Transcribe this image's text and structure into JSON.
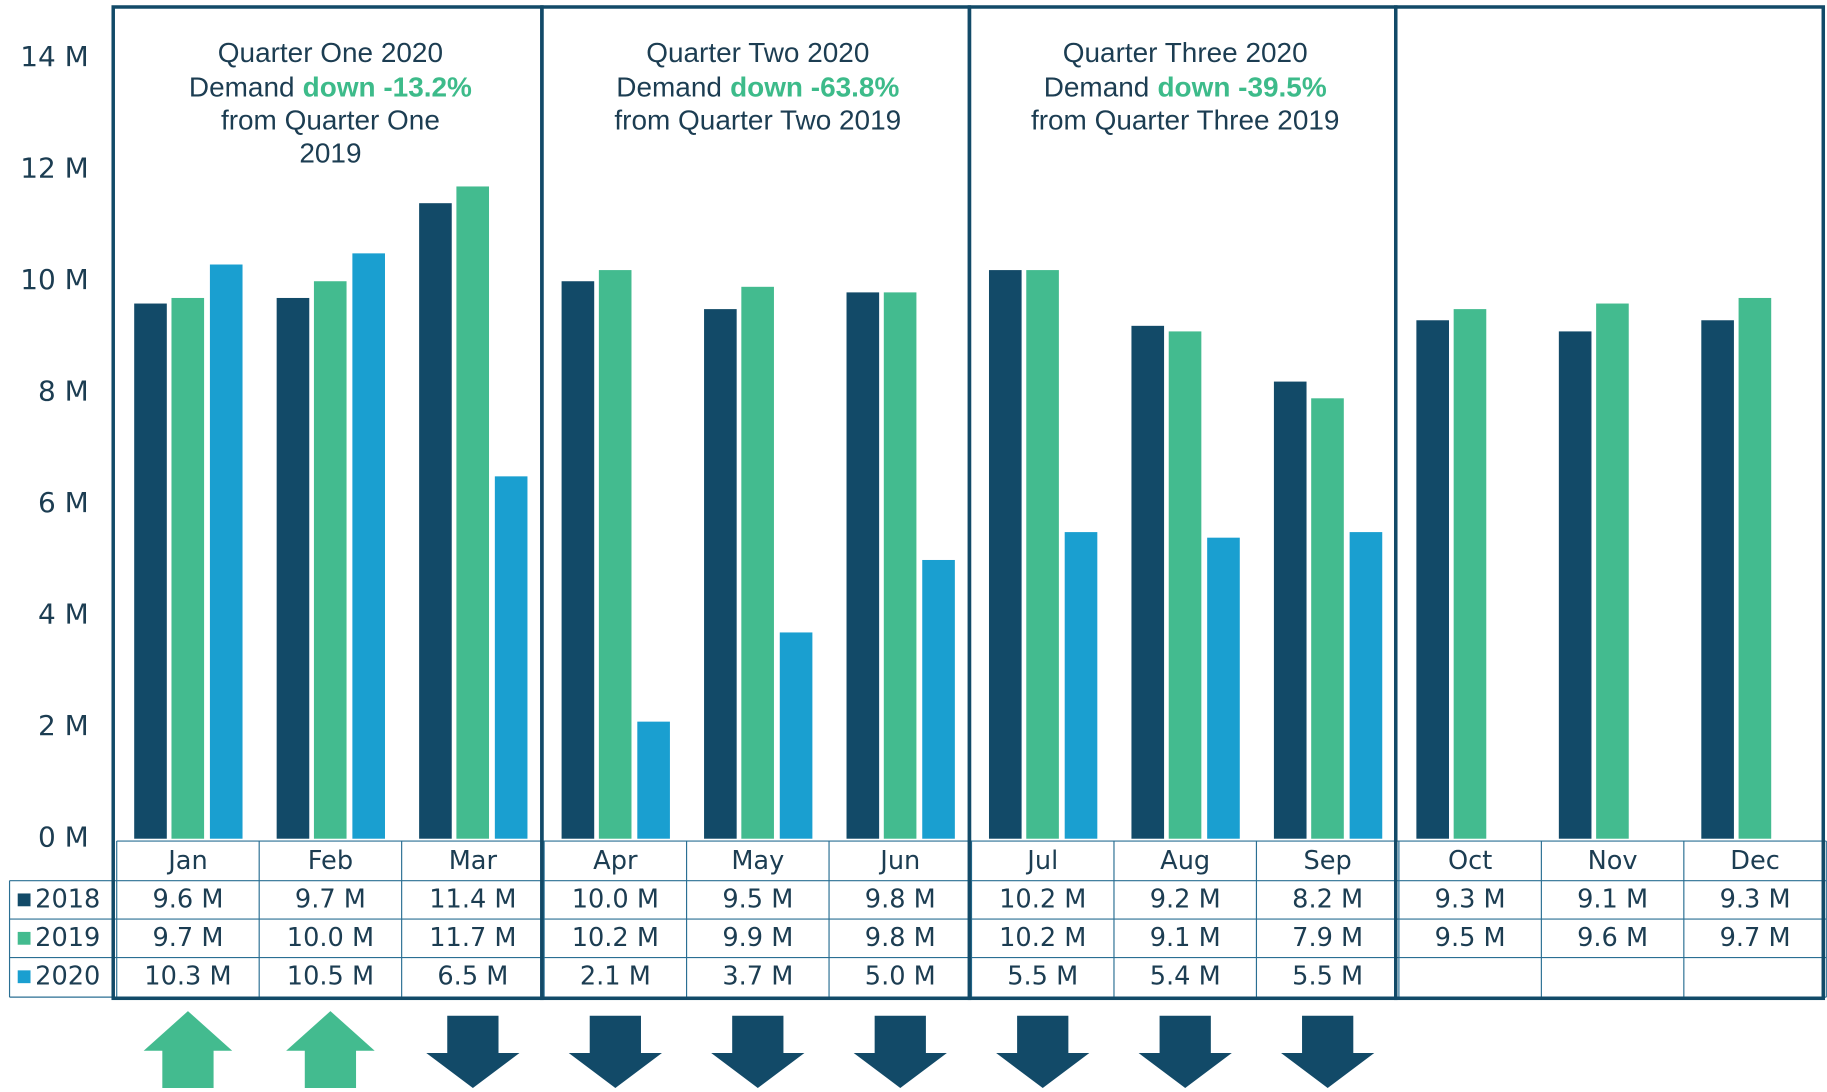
{
  "chart_data": {
    "type": "bar",
    "categories": [
      "Jan",
      "Feb",
      "Mar",
      "Apr",
      "May",
      "Jun",
      "Jul",
      "Aug",
      "Sep",
      "Oct",
      "Nov",
      "Dec"
    ],
    "series": [
      {
        "name": "2018",
        "color": "#124a68",
        "values": [
          9.6,
          9.7,
          11.4,
          10.0,
          9.5,
          9.8,
          10.2,
          9.2,
          8.2,
          9.3,
          9.1,
          9.3
        ],
        "value_labels": [
          "9.6 M",
          "9.7 M",
          "11.4 M",
          "10.0 M",
          "9.5 M",
          "9.8 M",
          "10.2 M",
          "9.2 M",
          "8.2 M",
          "9.3 M",
          "9.1 M",
          "9.3 M"
        ]
      },
      {
        "name": "2019",
        "color": "#43bb8f",
        "values": [
          9.7,
          10.0,
          11.7,
          10.2,
          9.9,
          9.8,
          10.2,
          9.1,
          7.9,
          9.5,
          9.6,
          9.7
        ],
        "value_labels": [
          "9.7 M",
          "10.0 M",
          "11.7 M",
          "10.2 M",
          "9.9 M",
          "9.8 M",
          "10.2 M",
          "9.1 M",
          "7.9 M",
          "9.5 M",
          "9.6 M",
          "9.7 M"
        ]
      },
      {
        "name": "2020",
        "color": "#1a9fd0",
        "values": [
          10.3,
          10.5,
          6.5,
          2.1,
          3.7,
          5.0,
          5.5,
          5.4,
          5.5,
          null,
          null,
          null
        ],
        "value_labels": [
          "10.3 M",
          "10.5 M",
          "6.5 M",
          "2.1 M",
          "3.7 M",
          "5.0 M",
          "5.5 M",
          "5.4 M",
          "5.5 M",
          null,
          null,
          null
        ]
      }
    ],
    "ylim": [
      0,
      14
    ],
    "yticks": [
      {
        "value": 0,
        "label": "0 M"
      },
      {
        "value": 2,
        "label": "2 M"
      },
      {
        "value": 4,
        "label": "4 M"
      },
      {
        "value": 6,
        "label": "6 M"
      },
      {
        "value": 8,
        "label": "8 M"
      },
      {
        "value": 10,
        "label": "10 M"
      },
      {
        "value": 12,
        "label": "12 M"
      },
      {
        "value": 14,
        "label": "14 M"
      }
    ],
    "grid": false,
    "annotations": [
      {
        "title": "Quarter One 2020",
        "prefix": "Demand",
        "highlight": "down -13.2%",
        "suffix": [
          "from Quarter One",
          "2019"
        ]
      },
      {
        "title": "Quarter Two 2020",
        "prefix": "Demand",
        "highlight": "down -63.8%",
        "suffix": [
          "from Quarter Two 2019"
        ]
      },
      {
        "title": "Quarter Three 2020",
        "prefix": "Demand",
        "highlight": "down -39.5%",
        "suffix": [
          "from Quarter Three 2019"
        ]
      }
    ],
    "highlight_color": "#3dbb8a",
    "arrows": [
      "up",
      "up",
      "down",
      "down",
      "down",
      "down",
      "down",
      "down",
      "down",
      null,
      null,
      null
    ]
  }
}
